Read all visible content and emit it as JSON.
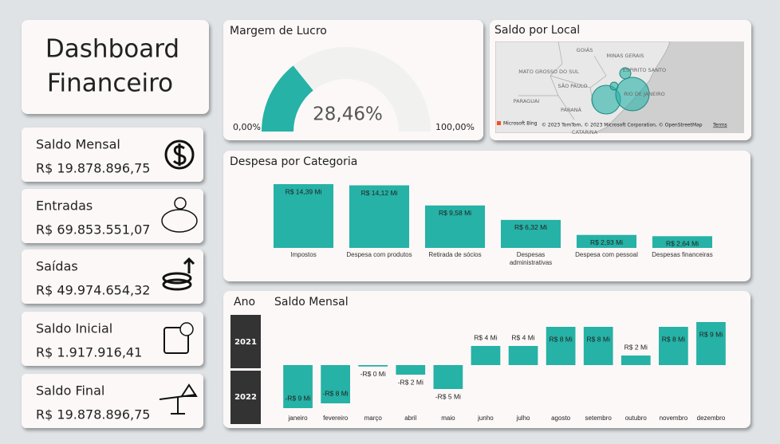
{
  "title": [
    "Dashboard",
    "Financeiro"
  ],
  "cards": [
    {
      "label": "Saldo Mensal",
      "value": "R$ 19.878.896,75"
    },
    {
      "label": "Entradas",
      "value": "R$ 69.853.551,07"
    },
    {
      "label": "Saídas",
      "value": "R$ 49.974.654,32"
    },
    {
      "label": "Saldo Inicial",
      "value": "R$ 1.917.916,41"
    },
    {
      "label": "Saldo Final",
      "value": "R$ 19.878.896,75"
    }
  ],
  "map": {
    "title": "Saldo por Local",
    "labels": [
      "GOIÁS",
      "MINAS GERAIS",
      "ESPIRITO SANTO",
      "MATO GROSSO DO SUL",
      "SÃO PAULO",
      "RIO DE JANEIRO",
      "PARAGUAI",
      "PARANÁ",
      "CATARINA"
    ],
    "provider": "Microsoft Bing",
    "attribution": "© 2023 TomTom, © 2023 Microsoft Corporation, © OpenStreetMap",
    "terms": "Terms"
  },
  "slicer": {
    "title": "Ano",
    "options": [
      "2021",
      "2022"
    ]
  },
  "chart_data": [
    {
      "type": "gauge",
      "title": "Margem de Lucro",
      "value": 28.46,
      "value_label": "28,46%",
      "ylim": [
        0,
        100
      ],
      "yticks": [
        {
          "value": 0,
          "label": "0,00%"
        },
        {
          "value": 100,
          "label": "100,00%"
        }
      ],
      "color": "#26b2a6",
      "track_color": "#f1f1f0"
    },
    {
      "type": "bar",
      "title": "Despesa por Categoria",
      "categories": [
        "Impostos",
        "Despesa com produtos",
        "Retirada de sócios",
        "Despesas administrativas",
        "Despesa com pessoal",
        "Despesas financeiras"
      ],
      "values": [
        14.39,
        14.12,
        9.58,
        6.32,
        2.93,
        2.64
      ],
      "value_labels": [
        "R$ 14,39 Mi",
        "R$ 14,12 Mi",
        "R$ 9,58 Mi",
        "R$ 6,32 Mi",
        "R$ 2,93 Mi",
        "R$ 2,64 Mi"
      ],
      "color": "#26b2a6"
    },
    {
      "type": "bar",
      "title": "Saldo Mensal",
      "categories": [
        "janeiro",
        "fevereiro",
        "março",
        "abril",
        "maio",
        "junho",
        "julho",
        "agosto",
        "setembro",
        "outubro",
        "novembro",
        "dezembro"
      ],
      "values": [
        -9,
        -8,
        -0.3,
        -2,
        -5,
        4,
        4,
        8,
        8,
        2,
        8,
        9
      ],
      "value_labels": [
        "-R$ 9 Mi",
        "-R$ 8 Mi",
        "-R$ 0 Mi",
        "-R$ 2 Mi",
        "-R$ 5 Mi",
        "R$ 4 Mi",
        "R$ 4 Mi",
        "R$ 8 Mi",
        "R$ 8 Mi",
        "R$ 2 Mi",
        "R$ 8 Mi",
        "R$ 9 Mi"
      ],
      "color": "#26b2a6"
    }
  ]
}
